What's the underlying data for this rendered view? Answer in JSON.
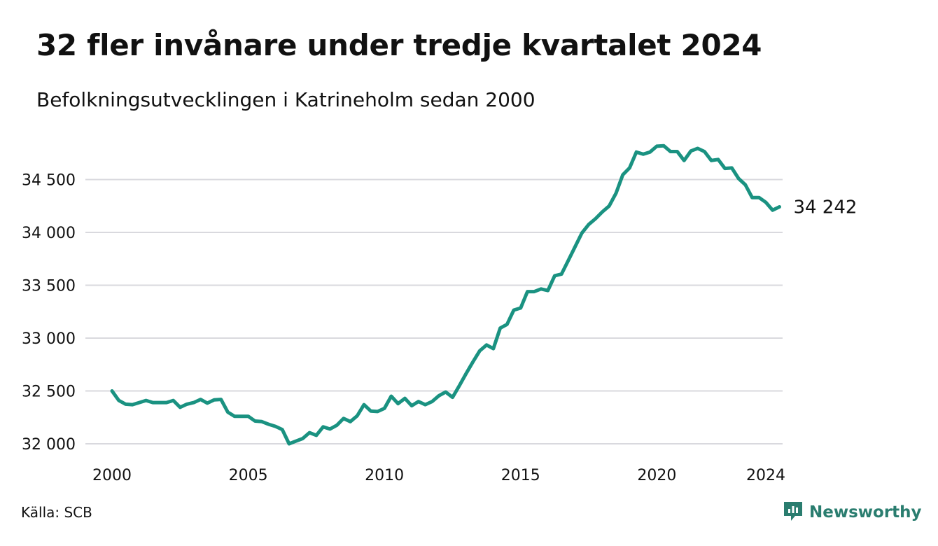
{
  "header": {
    "title": "32 fler invånare under tredje kvartalet 2024",
    "subtitle": "Befolkningsutvecklingen i Katrineholm sedan 2000"
  },
  "footer": {
    "source": "Källa: SCB",
    "brand": "Newsworthy",
    "brand_icon": "newsworthy-logo-icon"
  },
  "colors": {
    "line": "#1a9281",
    "grid": "#d9d9de",
    "text": "#111111",
    "brand": "#2a7d6f"
  },
  "chart_data": {
    "type": "line",
    "title": "32 fler invånare under tredje kvartalet 2024",
    "subtitle": "Befolkningsutvecklingen i Katrineholm sedan 2000",
    "ylim": [
      32000,
      35000
    ],
    "y_ticks": [
      32000,
      32500,
      33000,
      33500,
      34000,
      34500
    ],
    "y_tick_labels": [
      "32 000",
      "32 500",
      "33 000",
      "33 500",
      "34 000",
      "34 500"
    ],
    "x_ticks": [
      2000,
      2005,
      2010,
      2015,
      2020,
      2024
    ],
    "x_tick_labels": [
      "2000",
      "2005",
      "2010",
      "2015",
      "2020",
      "2024"
    ],
    "grid": true,
    "end_label": "34 242",
    "series": [
      {
        "values": [
          [
            2000.0,
            32500
          ],
          [
            2000.25,
            32410
          ],
          [
            2000.5,
            32375
          ],
          [
            2000.75,
            32370
          ],
          [
            2001.0,
            32390
          ],
          [
            2001.25,
            32410
          ],
          [
            2001.5,
            32390
          ],
          [
            2001.75,
            32390
          ],
          [
            2002.0,
            32390
          ],
          [
            2002.25,
            32410
          ],
          [
            2002.5,
            32345
          ],
          [
            2002.75,
            32375
          ],
          [
            2003.0,
            32390
          ],
          [
            2003.25,
            32420
          ],
          [
            2003.5,
            32385
          ],
          [
            2003.75,
            32415
          ],
          [
            2004.0,
            32420
          ],
          [
            2004.25,
            32300
          ],
          [
            2004.5,
            32260
          ],
          [
            2004.75,
            32260
          ],
          [
            2005.0,
            32260
          ],
          [
            2005.25,
            32215
          ],
          [
            2005.5,
            32210
          ],
          [
            2005.75,
            32185
          ],
          [
            2006.0,
            32165
          ],
          [
            2006.25,
            32135
          ],
          [
            2006.5,
            32000
          ],
          [
            2006.75,
            32025
          ],
          [
            2007.0,
            32050
          ],
          [
            2007.25,
            32105
          ],
          [
            2007.5,
            32080
          ],
          [
            2007.75,
            32160
          ],
          [
            2008.0,
            32140
          ],
          [
            2008.25,
            32175
          ],
          [
            2008.5,
            32240
          ],
          [
            2008.75,
            32210
          ],
          [
            2009.0,
            32265
          ],
          [
            2009.25,
            32370
          ],
          [
            2009.5,
            32310
          ],
          [
            2009.75,
            32305
          ],
          [
            2010.0,
            32335
          ],
          [
            2010.25,
            32450
          ],
          [
            2010.5,
            32380
          ],
          [
            2010.75,
            32430
          ],
          [
            2011.0,
            32360
          ],
          [
            2011.25,
            32400
          ],
          [
            2011.5,
            32370
          ],
          [
            2011.75,
            32400
          ],
          [
            2012.0,
            32455
          ],
          [
            2012.25,
            32490
          ],
          [
            2012.5,
            32440
          ],
          [
            2012.75,
            32550
          ],
          [
            2013.0,
            32665
          ],
          [
            2013.25,
            32775
          ],
          [
            2013.5,
            32880
          ],
          [
            2013.75,
            32935
          ],
          [
            2014.0,
            32900
          ],
          [
            2014.25,
            33095
          ],
          [
            2014.5,
            33130
          ],
          [
            2014.75,
            33265
          ],
          [
            2015.0,
            33285
          ],
          [
            2015.25,
            33440
          ],
          [
            2015.5,
            33440
          ],
          [
            2015.75,
            33465
          ],
          [
            2016.0,
            33450
          ],
          [
            2016.25,
            33590
          ],
          [
            2016.5,
            33605
          ],
          [
            2016.75,
            33735
          ],
          [
            2017.0,
            33865
          ],
          [
            2017.25,
            33995
          ],
          [
            2017.5,
            34075
          ],
          [
            2017.75,
            34130
          ],
          [
            2018.0,
            34195
          ],
          [
            2018.25,
            34250
          ],
          [
            2018.5,
            34370
          ],
          [
            2018.75,
            34545
          ],
          [
            2019.0,
            34610
          ],
          [
            2019.25,
            34760
          ],
          [
            2019.5,
            34740
          ],
          [
            2019.75,
            34760
          ],
          [
            2020.0,
            34815
          ],
          [
            2020.25,
            34820
          ],
          [
            2020.5,
            34765
          ],
          [
            2020.75,
            34765
          ],
          [
            2021.0,
            34680
          ],
          [
            2021.25,
            34770
          ],
          [
            2021.5,
            34795
          ],
          [
            2021.75,
            34765
          ],
          [
            2022.0,
            34680
          ],
          [
            2022.25,
            34690
          ],
          [
            2022.5,
            34605
          ],
          [
            2022.75,
            34610
          ],
          [
            2023.0,
            34510
          ],
          [
            2023.25,
            34450
          ],
          [
            2023.5,
            34330
          ],
          [
            2023.75,
            34330
          ],
          [
            2024.0,
            34285
          ],
          [
            2024.25,
            34210
          ],
          [
            2024.5,
            34242
          ]
        ]
      }
    ]
  }
}
